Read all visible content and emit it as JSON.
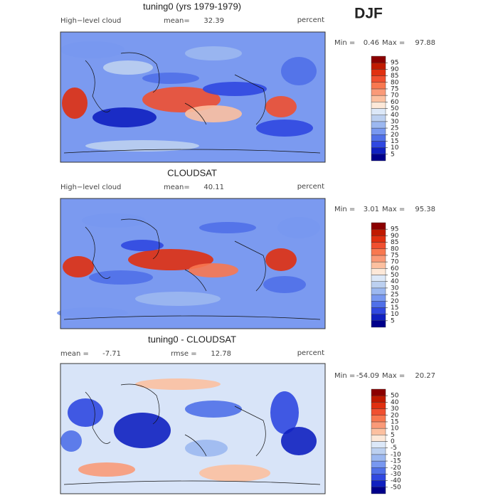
{
  "season": "DJF",
  "panels": [
    {
      "title": "tuning0 (yrs 1979-1979)",
      "left_label": "High−level cloud",
      "units": "percent",
      "stats": [
        {
          "label": "mean=",
          "value": 32.39
        }
      ],
      "min_label": "Min =",
      "min": 0.46,
      "max_label": "Max =",
      "max": 97.88,
      "levels": [
        5,
        10,
        15,
        20,
        25,
        30,
        40,
        50,
        60,
        70,
        75,
        80,
        85,
        90,
        95
      ],
      "colors": [
        "#00008b",
        "#1020c0",
        "#3048e0",
        "#5070e8",
        "#7898f0",
        "#9cb8f0",
        "#bcd0f0",
        "#dce8f8",
        "#fde8d8",
        "#fcc0a0",
        "#fa9a78",
        "#f87850",
        "#f05030",
        "#e03010",
        "#c01a00",
        "#8b0000"
      ]
    },
    {
      "title": "CLOUDSAT",
      "left_label": "High−level cloud",
      "units": "percent",
      "stats": [
        {
          "label": "mean=",
          "value": 40.11
        }
      ],
      "min_label": "Min =",
      "min": 3.01,
      "max_label": "Max =",
      "max": 95.38,
      "levels": [
        5,
        10,
        15,
        20,
        25,
        30,
        40,
        50,
        60,
        70,
        75,
        80,
        85,
        90,
        95
      ],
      "colors": [
        "#00008b",
        "#1020c0",
        "#3048e0",
        "#5070e8",
        "#7898f0",
        "#9cb8f0",
        "#bcd0f0",
        "#dce8f8",
        "#fde8d8",
        "#fcc0a0",
        "#fa9a78",
        "#f87850",
        "#f05030",
        "#e03010",
        "#c01a00",
        "#8b0000"
      ]
    },
    {
      "title": "tuning0 - CLOUDSAT",
      "left_label": null,
      "units": "percent",
      "stats": [
        {
          "label": "mean =",
          "value": -7.71
        },
        {
          "label": "rmse =",
          "value": 12.78
        }
      ],
      "min_label": "Min =",
      "min": -54.09,
      "max_label": "Max =",
      "max": 20.27,
      "levels": [
        -50,
        -40,
        -30,
        -20,
        -15,
        -10,
        -5,
        0,
        5,
        10,
        15,
        20,
        30,
        40,
        50
      ],
      "colors": [
        "#00008b",
        "#1020c0",
        "#3048e0",
        "#5070e8",
        "#7898f0",
        "#9cb8f0",
        "#bcd0f0",
        "#dce8f8",
        "#fde8d8",
        "#fcc0a0",
        "#fa9a78",
        "#f87850",
        "#f05030",
        "#e03010",
        "#c01a00",
        "#8b0000"
      ]
    }
  ]
}
